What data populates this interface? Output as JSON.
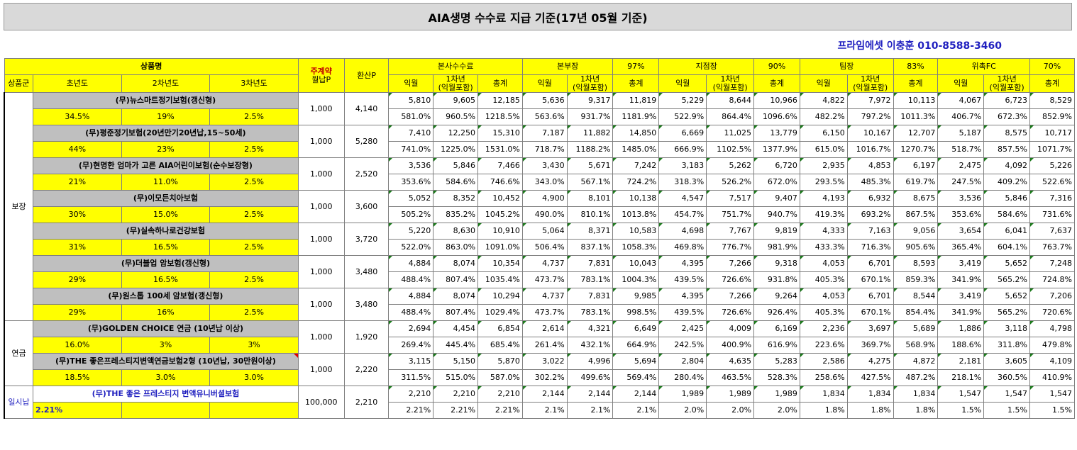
{
  "title": "AIA생명 수수료 지급 기준(17년 05월 기준)",
  "contact": "프라임에셋 이충훈 010-8588-3460",
  "header": {
    "product_name": "상품명",
    "contract": "주계약",
    "monthly_p": "월납P",
    "converted_p": "환산P",
    "hq_commission": "본사수수료",
    "division": "본부장",
    "division_pct": "97%",
    "branch": "지점장",
    "branch_pct": "90%",
    "team": "팀장",
    "team_pct": "83%",
    "fc": "위촉FC",
    "fc_pct": "70%",
    "group": "상품군",
    "year1": "초년도",
    "year2": "2차년도",
    "year3": "3차년도",
    "next_month": "익월",
    "first_year_a": "1차년",
    "first_year_b": "(익월포함)",
    "total": "총계"
  },
  "groups": [
    {
      "name": "보장"
    },
    {
      "name": "연금"
    },
    {
      "name": "일시납"
    }
  ],
  "products": [
    {
      "name": "(무)뉴스마트정기보험(갱신형)",
      "y1": "34.5%",
      "y2": "19%",
      "y3": "2.5%",
      "monthly": "1,000",
      "conv": "4,140",
      "amt": [
        "5,810",
        "9,605",
        "12,185",
        "5,636",
        "9,317",
        "11,819",
        "5,229",
        "8,644",
        "10,966",
        "4,822",
        "7,972",
        "10,113",
        "4,067",
        "6,723",
        "8,529"
      ],
      "pct": [
        "581.0%",
        "960.5%",
        "1218.5%",
        "563.6%",
        "931.7%",
        "1181.9%",
        "522.9%",
        "864.4%",
        "1096.6%",
        "482.2%",
        "797.2%",
        "1011.3%",
        "406.7%",
        "672.3%",
        "852.9%"
      ]
    },
    {
      "name": "(무)평준정기보험(20년만기20년납,15~50세)",
      "y1": "44%",
      "y2": "23%",
      "y3": "2.5%",
      "monthly": "1,000",
      "conv": "5,280",
      "amt": [
        "7,410",
        "12,250",
        "15,310",
        "7,187",
        "11,882",
        "14,850",
        "6,669",
        "11,025",
        "13,779",
        "6,150",
        "10,167",
        "12,707",
        "5,187",
        "8,575",
        "10,717"
      ],
      "pct": [
        "741.0%",
        "1225.0%",
        "1531.0%",
        "718.7%",
        "1188.2%",
        "1485.0%",
        "666.9%",
        "1102.5%",
        "1377.9%",
        "615.0%",
        "1016.7%",
        "1270.7%",
        "518.7%",
        "857.5%",
        "1071.7%"
      ]
    },
    {
      "name": "(무)현명한 엄마가 고른 AIA어린이보험(순수보장형)",
      "y1": "21%",
      "y2": "11.0%",
      "y3": "2.5%",
      "monthly": "1,000",
      "conv": "2,520",
      "amt": [
        "3,536",
        "5,846",
        "7,466",
        "3,430",
        "5,671",
        "7,242",
        "3,183",
        "5,262",
        "6,720",
        "2,935",
        "4,853",
        "6,197",
        "2,475",
        "4,092",
        "5,226"
      ],
      "pct": [
        "353.6%",
        "584.6%",
        "746.6%",
        "343.0%",
        "567.1%",
        "724.2%",
        "318.3%",
        "526.2%",
        "672.0%",
        "293.5%",
        "485.3%",
        "619.7%",
        "247.5%",
        "409.2%",
        "522.6%"
      ]
    },
    {
      "name": "(무)이모든치아보험",
      "y1": "30%",
      "y2": "15.0%",
      "y3": "2.5%",
      "monthly": "1,000",
      "conv": "3,600",
      "amt": [
        "5,052",
        "8,352",
        "10,452",
        "4,900",
        "8,101",
        "10,138",
        "4,547",
        "7,517",
        "9,407",
        "4,193",
        "6,932",
        "8,675",
        "3,536",
        "5,846",
        "7,316"
      ],
      "pct": [
        "505.2%",
        "835.2%",
        "1045.2%",
        "490.0%",
        "810.1%",
        "1013.8%",
        "454.7%",
        "751.7%",
        "940.7%",
        "419.3%",
        "693.2%",
        "867.5%",
        "353.6%",
        "584.6%",
        "731.6%"
      ]
    },
    {
      "name": "(무)실속하나로건강보험",
      "y1": "31%",
      "y2": "16.5%",
      "y3": "2.5%",
      "monthly": "1,000",
      "conv": "3,720",
      "amt": [
        "5,220",
        "8,630",
        "10,910",
        "5,064",
        "8,371",
        "10,583",
        "4,698",
        "7,767",
        "9,819",
        "4,333",
        "7,163",
        "9,056",
        "3,654",
        "6,041",
        "7,637"
      ],
      "pct": [
        "522.0%",
        "863.0%",
        "1091.0%",
        "506.4%",
        "837.1%",
        "1058.3%",
        "469.8%",
        "776.7%",
        "981.9%",
        "433.3%",
        "716.3%",
        "905.6%",
        "365.4%",
        "604.1%",
        "763.7%"
      ]
    },
    {
      "name": "(무)더블업 암보험(갱신형)",
      "y1": "29%",
      "y2": "16.5%",
      "y3": "2.5%",
      "monthly": "1,000",
      "conv": "3,480",
      "amt": [
        "4,884",
        "8,074",
        "10,354",
        "4,737",
        "7,831",
        "10,043",
        "4,395",
        "7,266",
        "9,318",
        "4,053",
        "6,701",
        "8,593",
        "3,419",
        "5,652",
        "7,248"
      ],
      "pct": [
        "488.4%",
        "807.4%",
        "1035.4%",
        "473.7%",
        "783.1%",
        "1004.3%",
        "439.5%",
        "726.6%",
        "931.8%",
        "405.3%",
        "670.1%",
        "859.3%",
        "341.9%",
        "565.2%",
        "724.8%"
      ]
    },
    {
      "name": "(무)원스톱 100세 암보험(갱신형)",
      "y1": "29%",
      "y2": "16%",
      "y3": "2.5%",
      "monthly": "1,000",
      "conv": "3,480",
      "amt": [
        "4,884",
        "8,074",
        "10,294",
        "4,737",
        "7,831",
        "9,985",
        "4,395",
        "7,266",
        "9,264",
        "4,053",
        "6,701",
        "8,544",
        "3,419",
        "5,652",
        "7,206"
      ],
      "pct": [
        "488.4%",
        "807.4%",
        "1029.4%",
        "473.7%",
        "783.1%",
        "998.5%",
        "439.5%",
        "726.6%",
        "926.4%",
        "405.3%",
        "670.1%",
        "854.4%",
        "341.9%",
        "565.2%",
        "720.6%"
      ]
    },
    {
      "name": "(무)GOLDEN CHOICE 연금 (10년납 이상)",
      "y1": "16.0%",
      "y2": "3%",
      "y3": "3%",
      "monthly": "1,000",
      "conv": "1,920",
      "amt": [
        "2,694",
        "4,454",
        "6,854",
        "2,614",
        "4,321",
        "6,649",
        "2,425",
        "4,009",
        "6,169",
        "2,236",
        "3,697",
        "5,689",
        "1,886",
        "3,118",
        "4,798"
      ],
      "pct": [
        "269.4%",
        "445.4%",
        "685.4%",
        "261.4%",
        "432.1%",
        "664.9%",
        "242.5%",
        "400.9%",
        "616.9%",
        "223.6%",
        "369.7%",
        "568.9%",
        "188.6%",
        "311.8%",
        "479.8%"
      ]
    },
    {
      "name": "(무)THE 좋은프레스티지변액연금보험2형 (10년납, 30만원이상)",
      "y1": "18.5%",
      "y2": "3.0%",
      "y3": "3.0%",
      "monthly": "1,000",
      "conv": "2,220",
      "amt": [
        "3,115",
        "5,150",
        "5,870",
        "3,022",
        "4,996",
        "5,694",
        "2,804",
        "4,635",
        "5,283",
        "2,586",
        "4,275",
        "4,872",
        "2,181",
        "3,605",
        "4,109"
      ],
      "pct": [
        "311.5%",
        "515.0%",
        "587.0%",
        "302.2%",
        "499.6%",
        "569.4%",
        "280.4%",
        "463.5%",
        "528.3%",
        "258.6%",
        "427.5%",
        "487.2%",
        "218.1%",
        "360.5%",
        "410.9%"
      ]
    },
    {
      "name": "(무)THE 좋은 프레스티지 변액유니버셜보험",
      "y1": "2.21%",
      "y2": "",
      "y3": "",
      "monthly": "100,000",
      "conv": "2,210",
      "amt": [
        "2,210",
        "2,210",
        "2,210",
        "2,144",
        "2,144",
        "2,144",
        "1,989",
        "1,989",
        "1,989",
        "1,834",
        "1,834",
        "1,834",
        "1,547",
        "1,547",
        "1,547"
      ],
      "pct": [
        "2.21%",
        "2.21%",
        "2.21%",
        "2.1%",
        "2.1%",
        "2.1%",
        "2.0%",
        "2.0%",
        "2.0%",
        "1.8%",
        "1.8%",
        "1.8%",
        "1.5%",
        "1.5%",
        "1.5%"
      ]
    }
  ],
  "colors": {
    "header_yellow": "#ffff00",
    "product_gray": "#bfbfbf",
    "accent_blue": "#1f1fbf",
    "header_red": "#c00000"
  }
}
